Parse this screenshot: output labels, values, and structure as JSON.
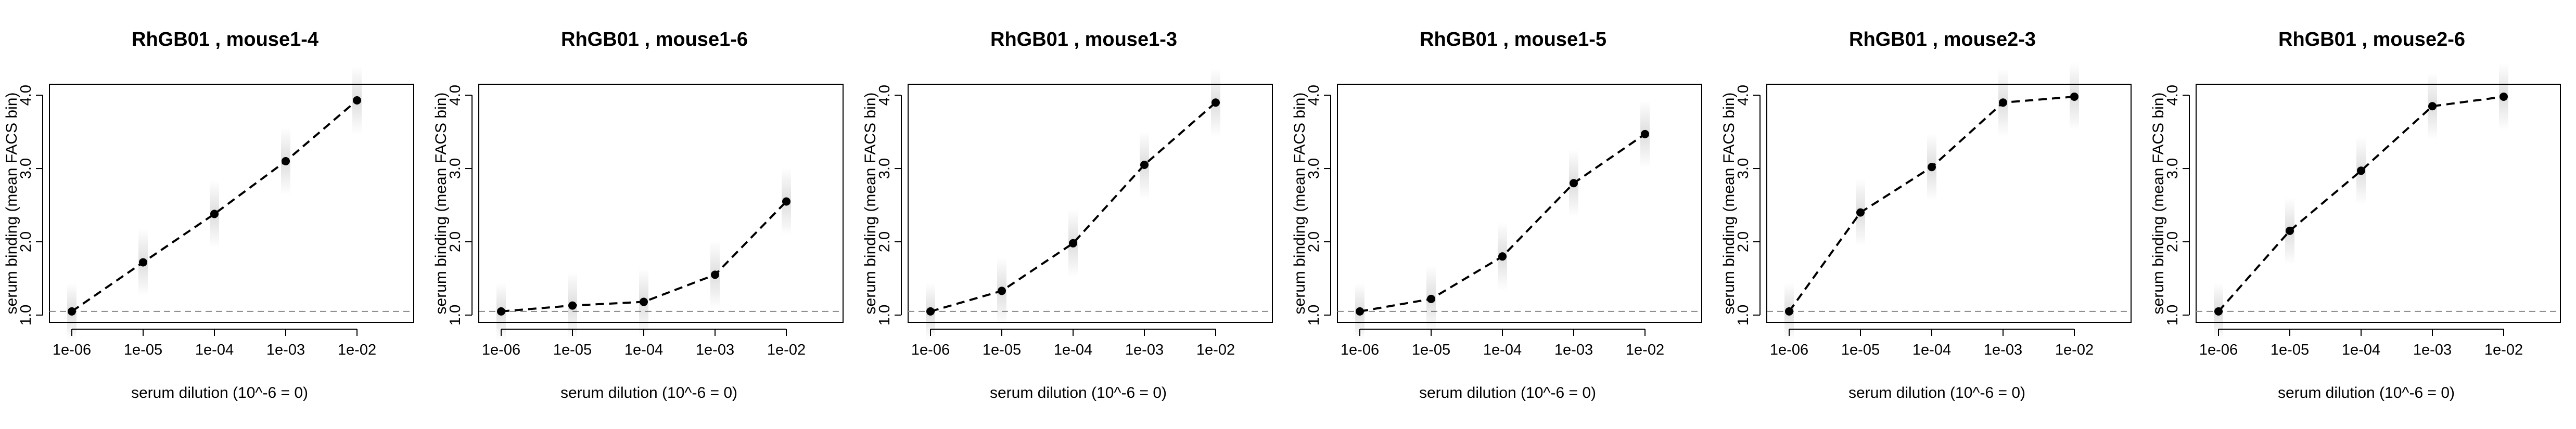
{
  "chart_data": [
    {
      "type": "line",
      "title": "RhGB01 , mouse1-4",
      "xlabel": "serum dilution (10^-6 = 0)",
      "ylabel": "serum binding (mean FACS bin)",
      "x_scale": "log",
      "x": [
        1e-06,
        1e-05,
        0.0001,
        0.001,
        0.01
      ],
      "x_tick_labels": [
        "1e-06",
        "1e-05",
        "1e-04",
        "1e-03",
        "1e-02"
      ],
      "y_tick_labels": [
        "1.0",
        "2.0",
        "3.0",
        "4.0"
      ],
      "ylim": [
        0.9,
        4.15
      ],
      "baseline": 1.05,
      "series": [
        {
          "values": [
            1.05,
            1.72,
            2.38,
            3.1,
            3.93
          ]
        }
      ]
    },
    {
      "type": "line",
      "title": "RhGB01 , mouse1-6",
      "xlabel": "serum dilution (10^-6 = 0)",
      "ylabel": "serum binding (mean FACS bin)",
      "x_scale": "log",
      "x": [
        1e-06,
        1e-05,
        0.0001,
        0.001,
        0.01
      ],
      "x_tick_labels": [
        "1e-06",
        "1e-05",
        "1e-04",
        "1e-03",
        "1e-02"
      ],
      "y_tick_labels": [
        "1.0",
        "2.0",
        "3.0",
        "4.0"
      ],
      "ylim": [
        0.9,
        4.15
      ],
      "baseline": 1.05,
      "series": [
        {
          "values": [
            1.05,
            1.13,
            1.18,
            1.55,
            2.55
          ]
        }
      ]
    },
    {
      "type": "line",
      "title": "RhGB01 , mouse1-3",
      "xlabel": "serum dilution (10^-6 = 0)",
      "ylabel": "serum binding (mean FACS bin)",
      "x_scale": "log",
      "x": [
        1e-06,
        1e-05,
        0.0001,
        0.001,
        0.01
      ],
      "x_tick_labels": [
        "1e-06",
        "1e-05",
        "1e-04",
        "1e-03",
        "1e-02"
      ],
      "y_tick_labels": [
        "1.0",
        "2.0",
        "3.0",
        "4.0"
      ],
      "ylim": [
        0.9,
        4.15
      ],
      "baseline": 1.05,
      "series": [
        {
          "values": [
            1.05,
            1.33,
            1.98,
            3.05,
            3.9
          ]
        }
      ]
    },
    {
      "type": "line",
      "title": "RhGB01 , mouse1-5",
      "xlabel": "serum dilution (10^-6 = 0)",
      "ylabel": "serum binding (mean FACS bin)",
      "x_scale": "log",
      "x": [
        1e-06,
        1e-05,
        0.0001,
        0.001,
        0.01
      ],
      "x_tick_labels": [
        "1e-06",
        "1e-05",
        "1e-04",
        "1e-03",
        "1e-02"
      ],
      "y_tick_labels": [
        "1.0",
        "2.0",
        "3.0",
        "4.0"
      ],
      "ylim": [
        0.9,
        4.15
      ],
      "baseline": 1.05,
      "series": [
        {
          "values": [
            1.05,
            1.22,
            1.8,
            2.8,
            3.47
          ]
        }
      ]
    },
    {
      "type": "line",
      "title": "RhGB01 , mouse2-3",
      "xlabel": "serum dilution (10^-6 = 0)",
      "ylabel": "serum binding (mean FACS bin)",
      "x_scale": "log",
      "x": [
        1e-06,
        1e-05,
        0.0001,
        0.001,
        0.01
      ],
      "x_tick_labels": [
        "1e-06",
        "1e-05",
        "1e-04",
        "1e-03",
        "1e-02"
      ],
      "y_tick_labels": [
        "1.0",
        "2.0",
        "3.0",
        "4.0"
      ],
      "ylim": [
        0.9,
        4.15
      ],
      "baseline": 1.05,
      "series": [
        {
          "values": [
            1.05,
            2.4,
            3.02,
            3.9,
            3.98
          ]
        }
      ]
    },
    {
      "type": "line",
      "title": "RhGB01 , mouse2-6",
      "xlabel": "serum dilution (10^-6 = 0)",
      "ylabel": "serum binding (mean FACS bin)",
      "x_scale": "log",
      "x": [
        1e-06,
        1e-05,
        0.0001,
        0.001,
        0.01
      ],
      "x_tick_labels": [
        "1e-06",
        "1e-05",
        "1e-04",
        "1e-03",
        "1e-02"
      ],
      "y_tick_labels": [
        "1.0",
        "2.0",
        "3.0",
        "4.0"
      ],
      "ylim": [
        0.9,
        4.15
      ],
      "baseline": 1.05,
      "series": [
        {
          "values": [
            1.05,
            2.15,
            2.97,
            3.85,
            3.98
          ]
        }
      ]
    }
  ]
}
